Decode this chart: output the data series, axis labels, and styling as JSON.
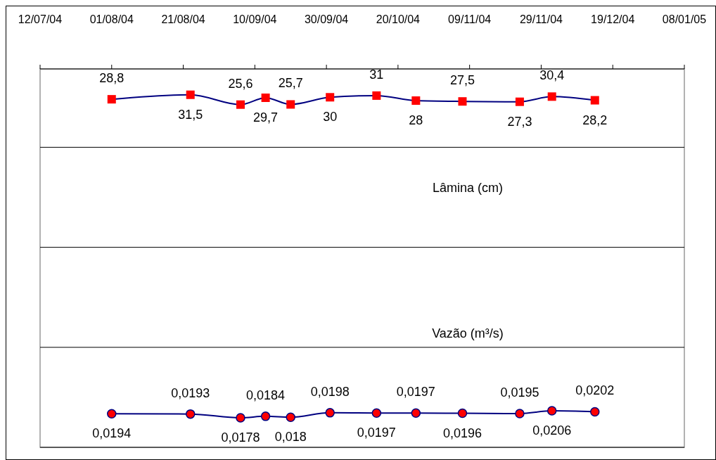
{
  "chart_data": {
    "type": "line",
    "ylabel": "Lâmina (cm)",
    "y2label": "Vazão (m³/s)",
    "x": [
      "2004-08-01",
      "2004-08-23",
      "2004-09-06",
      "2004-09-13",
      "2004-09-20",
      "2004-10-01",
      "2004-10-14",
      "2004-10-25",
      "2004-11-07",
      "2004-11-23",
      "2004-12-02",
      "2004-12-14"
    ],
    "xlim": [
      "2004-07-12",
      "2005-01-08"
    ],
    "xticks": [
      {
        "value": "2004-07-12",
        "label": "12/07/04"
      },
      {
        "value": "2004-08-01",
        "label": "01/08/04"
      },
      {
        "value": "2004-08-21",
        "label": "21/08/04"
      },
      {
        "value": "2004-09-10",
        "label": "10/09/04"
      },
      {
        "value": "2004-09-30",
        "label": "30/09/04"
      },
      {
        "value": "2004-10-20",
        "label": "20/10/04"
      },
      {
        "value": "2004-11-09",
        "label": "09/11/04"
      },
      {
        "value": "2004-11-29",
        "label": "29/11/04"
      },
      {
        "value": "2004-12-19",
        "label": "19/12/04"
      },
      {
        "value": "2005-01-08",
        "label": "08/01/05"
      }
    ],
    "ylim": [
      -180,
      47
    ],
    "yticks": [
      {
        "value": -180,
        "label": null
      },
      {
        "value": -120,
        "label": null
      },
      {
        "value": -60,
        "label": null
      },
      {
        "value": 0,
        "label": null
      }
    ],
    "tick_labels": "x",
    "grid": "y",
    "line_style": "solid",
    "series": [
      {
        "color": "#000080",
        "marker": "square",
        "values": [
          28.8,
          31.5,
          25.6,
          29.7,
          25.7,
          30,
          31,
          28,
          27.5,
          27.3,
          30.4,
          28.2
        ],
        "value_labels": [
          "28,8",
          "31,5",
          "25,6",
          "29,7",
          "25,7",
          "30",
          "31",
          "28",
          "27,5",
          "27,3",
          "30,4",
          "28,2"
        ]
      },
      {
        "color": "#000080",
        "marker": "circle",
        "axis": "y2",
        "values": [
          0.0194,
          0.0193,
          0.0178,
          0.0184,
          0.018,
          0.0198,
          0.0197,
          0.0197,
          0.0196,
          0.0195,
          0.0206,
          0.0202
        ],
        "value_labels": [
          "0,0194",
          "0,0193",
          "0,0178",
          "0,0184",
          "0,018",
          "0,0198",
          "0,0197",
          "0,0197",
          "0,0196",
          "0,0195",
          "0,0206",
          "0,0202"
        ]
      }
    ]
  }
}
